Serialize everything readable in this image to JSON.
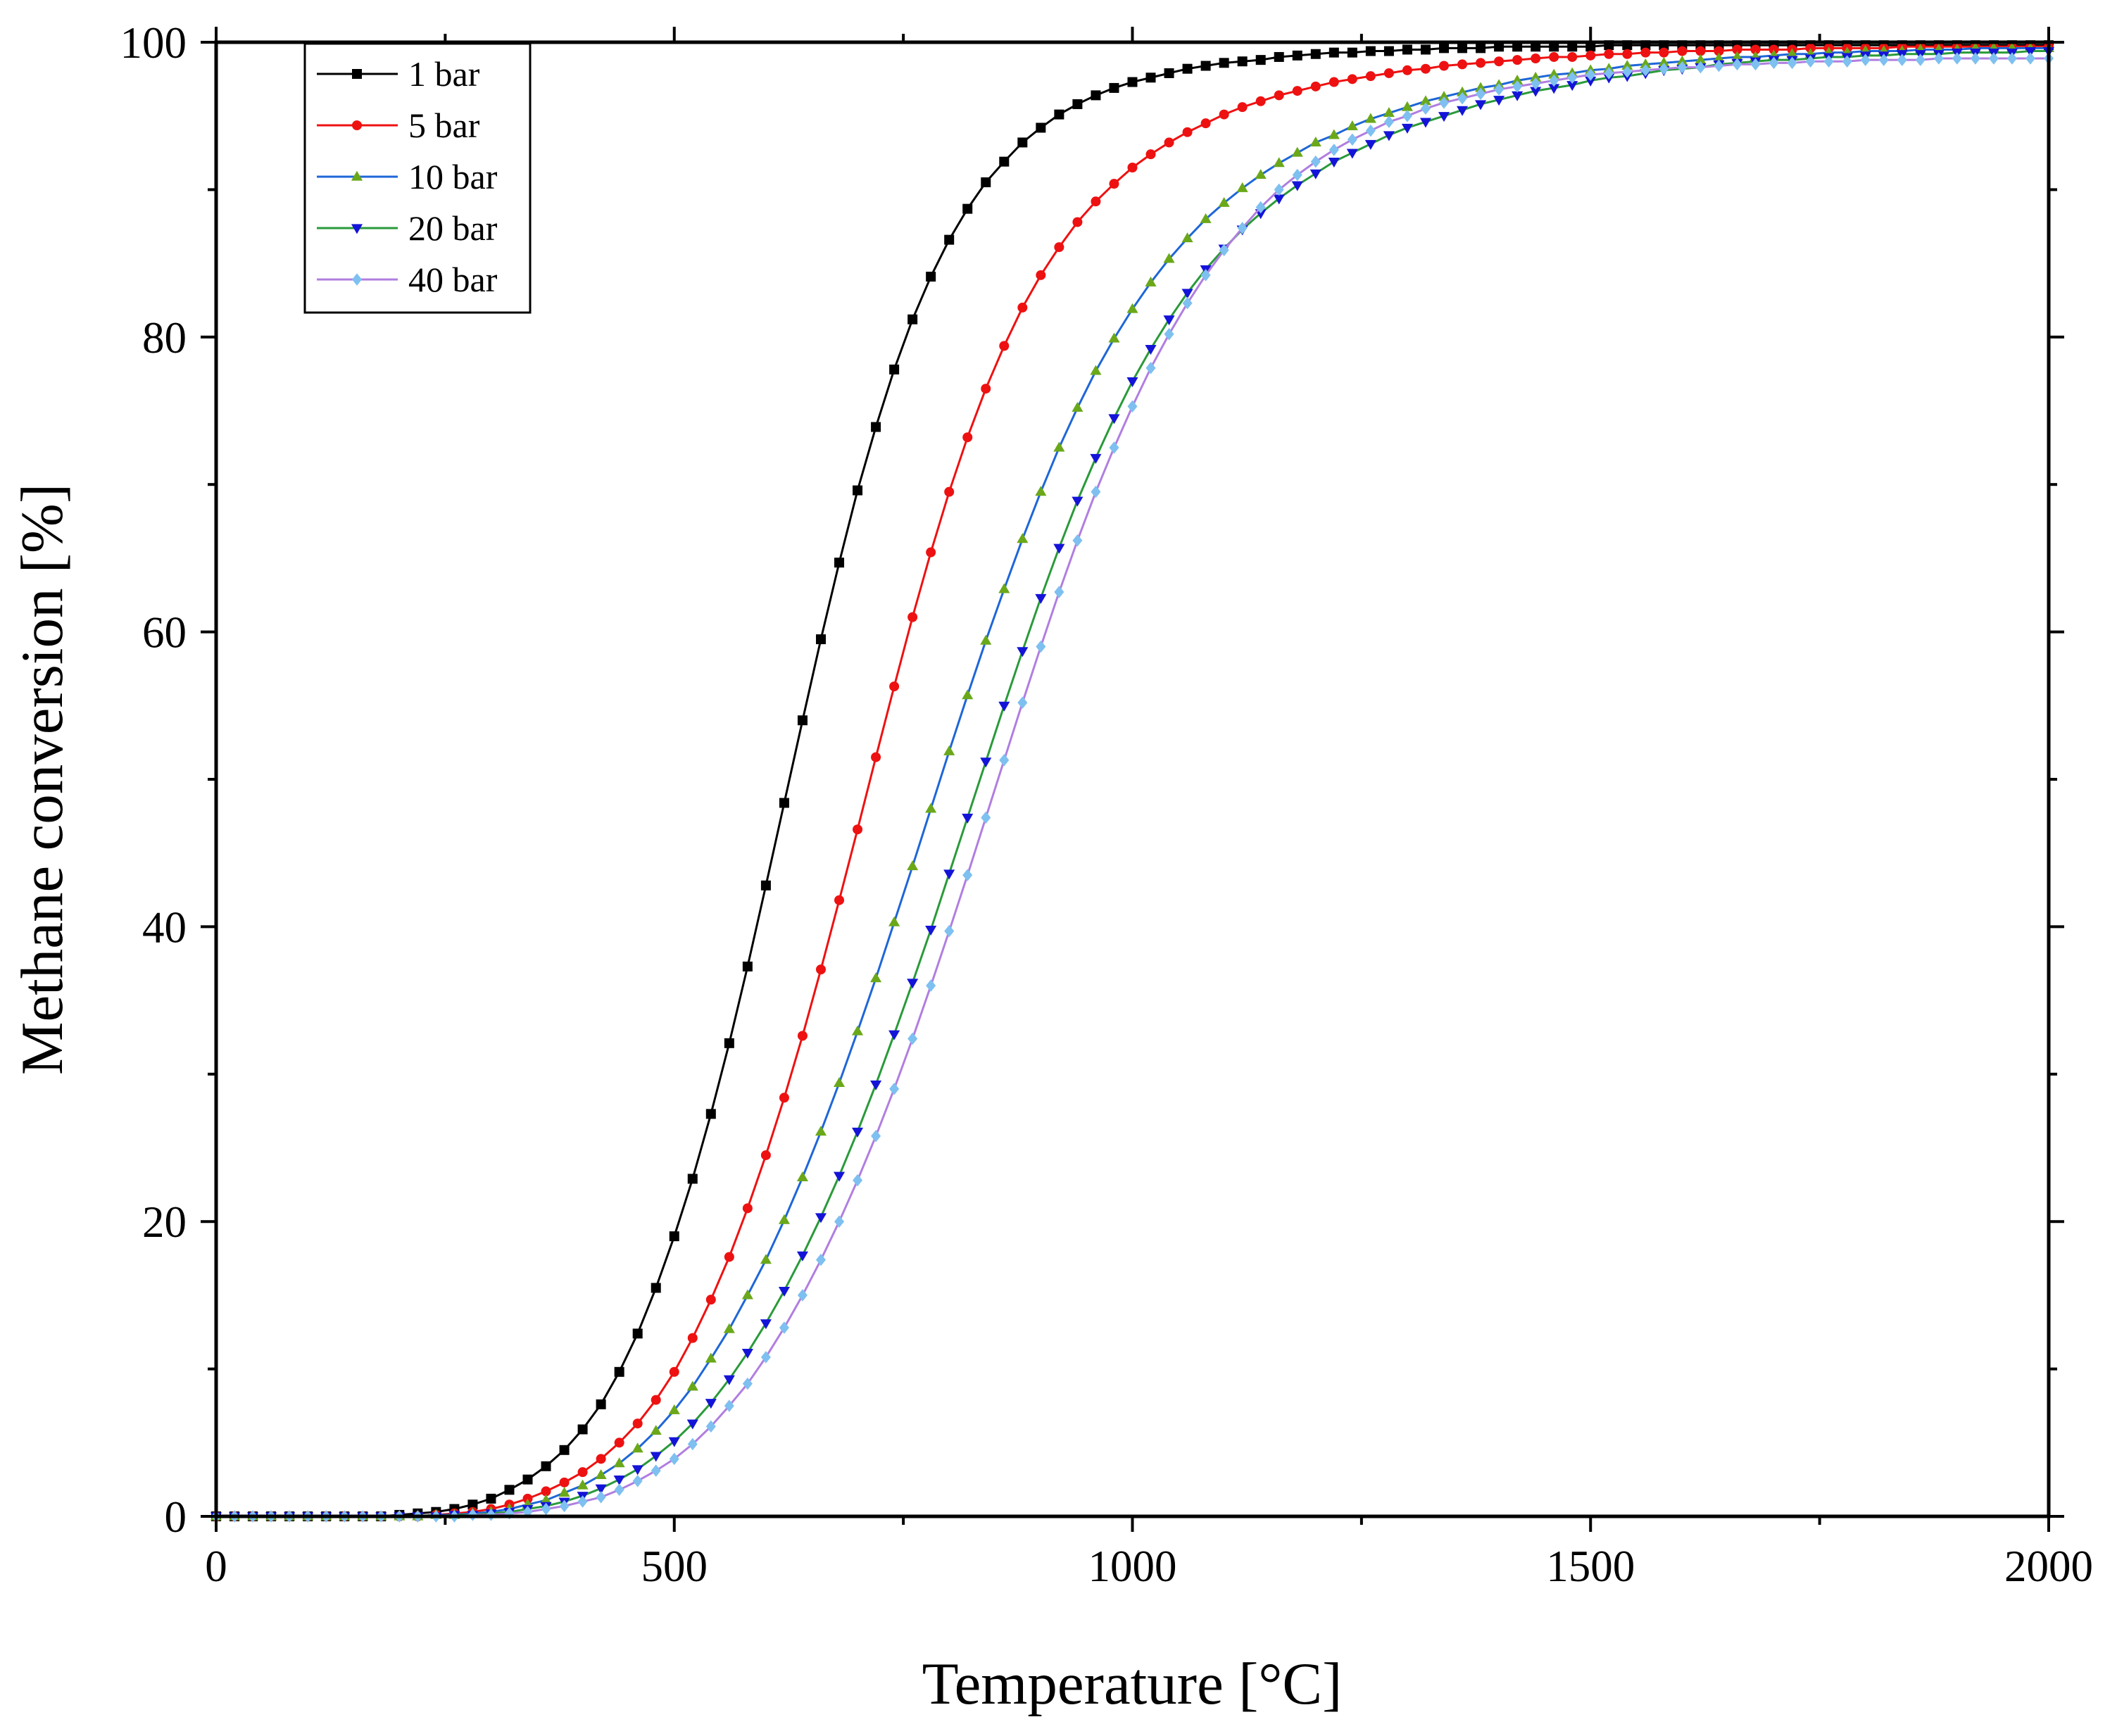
{
  "chart_data": {
    "type": "line",
    "title": "",
    "xlabel": "Temperature [°C]",
    "ylabel": "Methane conversion [%]",
    "xlim": [
      0,
      2000
    ],
    "ylim": [
      0,
      100
    ],
    "x_ticks": [
      0,
      500,
      1000,
      1500,
      2000
    ],
    "x_tick_labels": [
      "0",
      "500",
      "1000",
      "1500",
      "2000"
    ],
    "y_ticks": [
      0,
      20,
      40,
      60,
      80,
      100
    ],
    "y_tick_labels": [
      "0",
      "20",
      "40",
      "60",
      "80",
      "100"
    ],
    "grid": false,
    "legend_position": "top-left",
    "x_step": 20,
    "series": [
      {
        "name": "1 bar",
        "color": "#000000",
        "marker": "square",
        "values": [
          0,
          0,
          0,
          0,
          0,
          0,
          0,
          0,
          0,
          0,
          0.1,
          0.2,
          0.3,
          0.5,
          0.8,
          1.2,
          1.8,
          2.5,
          3.4,
          4.5,
          5.9,
          7.6,
          9.8,
          12.4,
          15.5,
          19.0,
          22.9,
          27.3,
          32.1,
          37.3,
          42.8,
          48.4,
          54.0,
          59.5,
          64.7,
          69.6,
          73.9,
          77.8,
          81.2,
          84.1,
          86.6,
          88.7,
          90.5,
          91.9,
          93.2,
          94.2,
          95.1,
          95.8,
          96.4,
          96.9,
          97.3,
          97.6,
          97.9,
          98.2,
          98.4,
          98.6,
          98.7,
          98.8,
          99.0,
          99.1,
          99.2,
          99.3,
          99.3,
          99.4,
          99.4,
          99.5,
          99.5,
          99.6,
          99.6,
          99.6,
          99.7,
          99.7,
          99.7,
          99.7,
          99.7,
          99.7,
          99.8,
          99.8,
          99.8,
          99.8,
          99.8,
          99.8,
          99.8,
          99.8,
          99.8,
          99.8,
          99.8,
          99.8,
          99.8,
          99.8,
          99.8,
          99.8,
          99.8,
          99.8,
          99.8,
          99.8,
          99.8,
          99.8,
          99.8,
          99.8,
          99.8
        ]
      },
      {
        "name": "5 bar",
        "color": "#ee1111",
        "marker": "circle",
        "values": [
          0,
          0,
          0,
          0,
          0,
          0,
          0,
          0,
          0,
          0,
          0,
          0,
          0.1,
          0.2,
          0.3,
          0.5,
          0.8,
          1.2,
          1.7,
          2.3,
          3.0,
          3.9,
          5.0,
          6.3,
          7.9,
          9.8,
          12.1,
          14.7,
          17.6,
          20.9,
          24.5,
          28.4,
          32.6,
          37.1,
          41.8,
          46.6,
          51.5,
          56.3,
          61.0,
          65.4,
          69.5,
          73.2,
          76.5,
          79.4,
          82.0,
          84.2,
          86.1,
          87.8,
          89.2,
          90.4,
          91.5,
          92.4,
          93.2,
          93.9,
          94.5,
          95.1,
          95.6,
          96.0,
          96.4,
          96.7,
          97.0,
          97.3,
          97.5,
          97.7,
          97.9,
          98.1,
          98.2,
          98.4,
          98.5,
          98.6,
          98.7,
          98.8,
          98.9,
          99.0,
          99.0,
          99.1,
          99.2,
          99.2,
          99.3,
          99.3,
          99.4,
          99.4,
          99.4,
          99.5,
          99.5,
          99.5,
          99.5,
          99.6,
          99.6,
          99.6,
          99.6,
          99.6,
          99.7,
          99.7,
          99.7,
          99.7,
          99.7,
          99.7,
          99.7,
          99.7,
          99.7
        ]
      },
      {
        "name": "10 bar",
        "color": "#1e66d8",
        "marker": "triangle-up",
        "markerColor": "#6aa81a",
        "values": [
          0,
          0,
          0,
          0,
          0,
          0,
          0,
          0,
          0,
          0,
          0,
          0,
          0.1,
          0.1,
          0.2,
          0.3,
          0.5,
          0.8,
          1.1,
          1.6,
          2.1,
          2.8,
          3.6,
          4.6,
          5.8,
          7.2,
          8.8,
          10.7,
          12.7,
          15.0,
          17.4,
          20.1,
          23.0,
          26.1,
          29.4,
          32.9,
          36.5,
          40.3,
          44.1,
          48.0,
          51.9,
          55.7,
          59.4,
          62.9,
          66.3,
          69.5,
          72.5,
          75.2,
          77.7,
          79.9,
          81.9,
          83.7,
          85.3,
          86.7,
          88.0,
          89.1,
          90.1,
          91.0,
          91.8,
          92.5,
          93.2,
          93.7,
          94.3,
          94.8,
          95.2,
          95.6,
          96.0,
          96.3,
          96.6,
          96.9,
          97.1,
          97.4,
          97.6,
          97.8,
          97.9,
          98.1,
          98.2,
          98.4,
          98.5,
          98.6,
          98.7,
          98.8,
          98.9,
          99.0,
          99.0,
          99.1,
          99.2,
          99.2,
          99.3,
          99.3,
          99.4,
          99.4,
          99.4,
          99.5,
          99.5,
          99.5,
          99.6,
          99.6,
          99.6,
          99.6,
          99.6
        ]
      },
      {
        "name": "20 bar",
        "color": "#2a9a3a",
        "marker": "triangle-down",
        "markerColor": "#1414d8",
        "values": [
          0,
          0,
          0,
          0,
          0,
          0,
          0,
          0,
          0,
          0,
          0,
          0,
          0,
          0.1,
          0.1,
          0.2,
          0.3,
          0.5,
          0.7,
          1.0,
          1.4,
          1.9,
          2.5,
          3.2,
          4.1,
          5.1,
          6.3,
          7.7,
          9.3,
          11.1,
          13.1,
          15.3,
          17.7,
          20.3,
          23.1,
          26.1,
          29.3,
          32.7,
          36.2,
          39.8,
          43.6,
          47.4,
          51.2,
          55.0,
          58.7,
          62.3,
          65.7,
          68.9,
          71.8,
          74.5,
          77.0,
          79.2,
          81.2,
          83.0,
          84.6,
          86.0,
          87.3,
          88.4,
          89.4,
          90.3,
          91.1,
          91.9,
          92.5,
          93.1,
          93.7,
          94.2,
          94.6,
          95.0,
          95.4,
          95.8,
          96.1,
          96.4,
          96.7,
          96.9,
          97.1,
          97.4,
          97.6,
          97.7,
          97.9,
          98.1,
          98.2,
          98.3,
          98.5,
          98.6,
          98.7,
          98.8,
          98.8,
          98.9,
          99.0,
          99.0,
          99.1,
          99.1,
          99.2,
          99.2,
          99.2,
          99.3,
          99.3,
          99.3,
          99.3,
          99.4,
          99.4
        ]
      },
      {
        "name": "40 bar",
        "color": "#b07ee0",
        "marker": "diamond",
        "markerColor": "#7ec0f0",
        "values": [
          0,
          0,
          0,
          0,
          0,
          0,
          0,
          0,
          0,
          0,
          0,
          0,
          0,
          0,
          0.1,
          0.1,
          0.2,
          0.3,
          0.5,
          0.7,
          1.0,
          1.3,
          1.8,
          2.4,
          3.1,
          3.9,
          4.9,
          6.1,
          7.5,
          9.0,
          10.8,
          12.8,
          15.0,
          17.4,
          20.0,
          22.8,
          25.8,
          29.0,
          32.4,
          36.0,
          39.7,
          43.5,
          47.4,
          51.3,
          55.2,
          59.0,
          62.7,
          66.2,
          69.5,
          72.5,
          75.3,
          77.9,
          80.2,
          82.3,
          84.2,
          85.9,
          87.4,
          88.8,
          90.0,
          91.0,
          91.9,
          92.7,
          93.4,
          94.0,
          94.6,
          95.0,
          95.5,
          95.9,
          96.2,
          96.5,
          96.8,
          97.0,
          97.2,
          97.4,
          97.6,
          97.8,
          97.9,
          98.0,
          98.1,
          98.2,
          98.3,
          98.3,
          98.4,
          98.5,
          98.5,
          98.6,
          98.6,
          98.7,
          98.7,
          98.7,
          98.8,
          98.8,
          98.8,
          98.8,
          98.9,
          98.9,
          98.9,
          98.9,
          98.9,
          98.9,
          98.9
        ]
      }
    ]
  }
}
